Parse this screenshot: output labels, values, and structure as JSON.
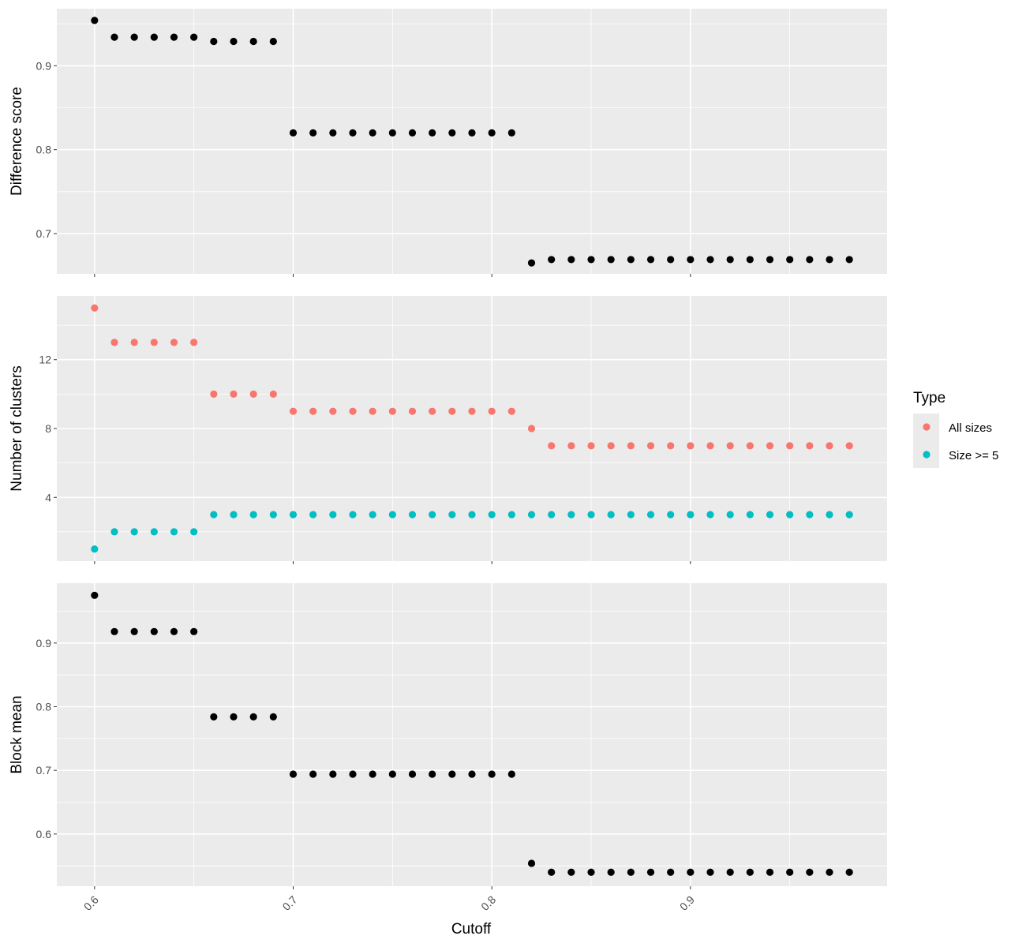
{
  "chart_data": {
    "type": "scatter",
    "x_axis": {
      "label": "Cutoff",
      "range": [
        0.581,
        0.999
      ],
      "ticks": [
        0.6,
        0.7,
        0.8,
        0.9
      ],
      "tick_labels": [
        "0.6",
        "0.7",
        "0.8",
        "0.9"
      ]
    },
    "x": [
      0.6,
      0.61,
      0.62,
      0.63,
      0.64,
      0.65,
      0.66,
      0.67,
      0.68,
      0.69,
      0.7,
      0.71,
      0.72,
      0.73,
      0.74,
      0.75,
      0.76,
      0.77,
      0.78,
      0.79,
      0.8,
      0.81,
      0.82,
      0.83,
      0.84,
      0.85,
      0.86,
      0.87,
      0.88,
      0.89,
      0.9,
      0.91,
      0.92,
      0.93,
      0.94,
      0.95,
      0.96,
      0.97,
      0.98
    ],
    "panels": [
      {
        "ylabel": "Difference score",
        "ylim": [
          0.652,
          0.968
        ],
        "yticks": [
          0.7,
          0.8,
          0.9
        ],
        "ytick_labels": [
          "0.7",
          "0.8",
          "0.9"
        ],
        "series": [
          {
            "color": "#000000",
            "values": [
              0.954,
              0.934,
              0.934,
              0.934,
              0.934,
              0.934,
              0.929,
              0.929,
              0.929,
              0.929,
              0.82,
              0.82,
              0.82,
              0.82,
              0.82,
              0.82,
              0.82,
              0.82,
              0.82,
              0.82,
              0.82,
              0.82,
              0.665,
              0.669,
              0.669,
              0.669,
              0.669,
              0.669,
              0.669,
              0.669,
              0.669,
              0.669,
              0.669,
              0.669,
              0.669,
              0.669,
              0.669,
              0.669,
              0.669
            ]
          }
        ]
      },
      {
        "ylabel": "Number of clusters",
        "ylim": [
          0.3,
          15.7
        ],
        "yticks": [
          4,
          8,
          12
        ],
        "ytick_labels": [
          "4",
          "8",
          "12"
        ],
        "series": [
          {
            "name": "All sizes",
            "color": "#F8766D",
            "values": [
              15,
              13,
              13,
              13,
              13,
              13,
              10,
              10,
              10,
              10,
              9,
              9,
              9,
              9,
              9,
              9,
              9,
              9,
              9,
              9,
              9,
              9,
              8,
              7,
              7,
              7,
              7,
              7,
              7,
              7,
              7,
              7,
              7,
              7,
              7,
              7,
              7,
              7,
              7
            ]
          },
          {
            "name": "Size >= 5",
            "color": "#00BFC4",
            "values": [
              1,
              2,
              2,
              2,
              2,
              2,
              3,
              3,
              3,
              3,
              3,
              3,
              3,
              3,
              3,
              3,
              3,
              3,
              3,
              3,
              3,
              3,
              3,
              3,
              3,
              3,
              3,
              3,
              3,
              3,
              3,
              3,
              3,
              3,
              3,
              3,
              3,
              3,
              3
            ]
          }
        ]
      },
      {
        "ylabel": "Block mean",
        "ylim": [
          0.518,
          0.994
        ],
        "yticks": [
          0.6,
          0.7,
          0.8,
          0.9
        ],
        "ytick_labels": [
          "0.6",
          "0.7",
          "0.8",
          "0.9"
        ],
        "series": [
          {
            "color": "#000000",
            "values": [
              0.975,
              0.918,
              0.918,
              0.918,
              0.918,
              0.918,
              0.784,
              0.784,
              0.784,
              0.784,
              0.694,
              0.694,
              0.694,
              0.694,
              0.694,
              0.694,
              0.694,
              0.694,
              0.694,
              0.694,
              0.694,
              0.694,
              0.554,
              0.54,
              0.54,
              0.54,
              0.54,
              0.54,
              0.54,
              0.54,
              0.54,
              0.54,
              0.54,
              0.54,
              0.54,
              0.54,
              0.54,
              0.54,
              0.54
            ]
          }
        ]
      }
    ],
    "legend": {
      "title": "Type",
      "placement": "right",
      "entries": [
        {
          "label": "All sizes",
          "color": "#F8766D"
        },
        {
          "label": "Size >= 5",
          "color": "#00BFC4"
        }
      ]
    },
    "grid": true,
    "panel_background": "#EBEBEB",
    "gridline_color": "#FFFFFF"
  }
}
